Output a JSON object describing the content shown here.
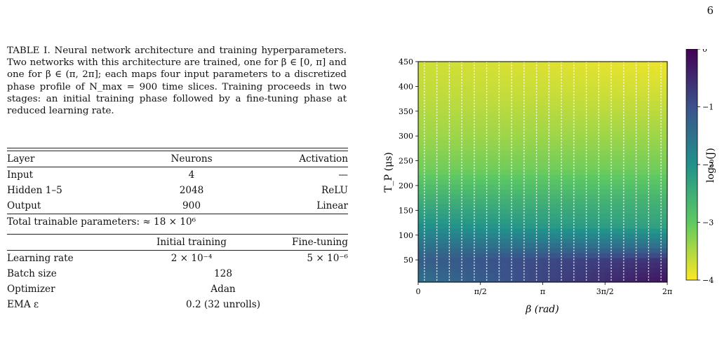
{
  "page_number": "6",
  "caption": "TABLE I. Neural network architecture and training hyperparameters. Two networks with this architecture are trained, one for β ∈ [0, π] and one for β ∈ (π, 2π]; each maps four input parameters to a discretized phase profile of N_max = 900 time slices. Training proceeds in two stages: an initial training phase followed by a fine-tuning phase at reduced learning rate.",
  "table": {
    "arch_header": [
      "Layer",
      "Neurons",
      "Activation"
    ],
    "arch_rows": [
      [
        "Input",
        "4",
        "—"
      ],
      [
        "Hidden 1–5",
        "2048",
        "ReLU"
      ],
      [
        "Output",
        "900",
        "Linear"
      ]
    ],
    "total_params": "Total trainable parameters: ≈ 18 × 10⁶",
    "train_header": [
      "",
      "Initial training",
      "Fine-tuning"
    ],
    "learning_rate": [
      "Learning rate",
      "2 × 10⁻⁴",
      "5 × 10⁻⁶"
    ],
    "batch_size": [
      "Batch size",
      "128"
    ],
    "optimizer": [
      "Optimizer",
      "Adan"
    ],
    "ema": [
      "EMA ε",
      "0.2 (32 unrolls)"
    ]
  },
  "chart_data": {
    "type": "heatmap",
    "xlabel": "β (rad)",
    "ylabel": "T_P (μs)",
    "colorbar_label": "log₁₀(J)",
    "xlim": [
      0,
      6.2832
    ],
    "ylim": [
      5,
      450
    ],
    "x_ticks": [
      "0",
      "π/2",
      "π",
      "3π/2",
      "2π"
    ],
    "y_ticks": [
      "50",
      "100",
      "150",
      "200",
      "250",
      "300",
      "350",
      "400",
      "450"
    ],
    "colorbar_range": [
      -4,
      0
    ],
    "colorbar_ticks": [
      "0",
      "−1",
      "−2",
      "−3",
      "−4"
    ],
    "colormap": "viridis_reversed",
    "scan_columns": 20,
    "log10J_by_TP": [
      {
        "tp": 5,
        "left": -1.5,
        "right": -0.2
      },
      {
        "tp": 50,
        "left": -1.2,
        "right": -0.6
      },
      {
        "tp": 80,
        "left": -1.5,
        "right": -1.5
      },
      {
        "tp": 120,
        "left": -2.0,
        "right": -2.3
      },
      {
        "tp": 170,
        "left": -2.5,
        "right": -2.6
      },
      {
        "tp": 230,
        "left": -3.1,
        "right": -3.1
      },
      {
        "tp": 300,
        "left": -3.4,
        "right": -3.4
      },
      {
        "tp": 380,
        "left": -3.6,
        "right": -3.7
      },
      {
        "tp": 450,
        "left": -3.7,
        "right": -3.9
      }
    ]
  }
}
